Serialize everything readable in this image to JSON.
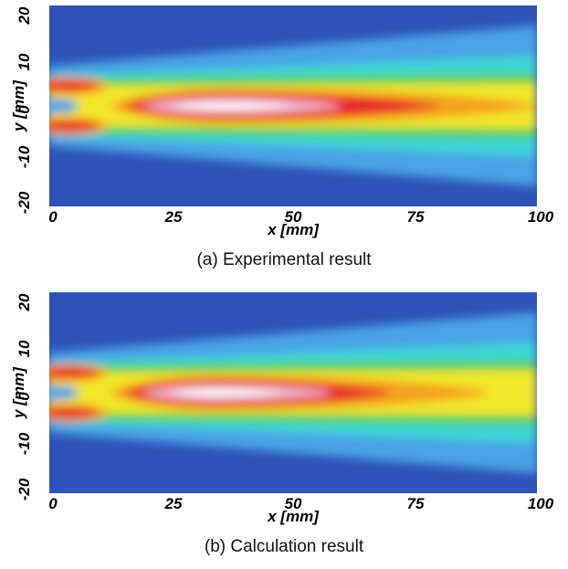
{
  "chart_data": [
    {
      "type": "heatmap",
      "caption": "(a) Experimental result",
      "xlabel": "x [mm]",
      "ylabel": "y [mm]",
      "xlim": [
        0,
        100
      ],
      "ylim": [
        -20,
        20
      ],
      "xticks": [
        "0",
        "25",
        "50",
        "75",
        "100"
      ],
      "yticks": [
        "20",
        "10",
        "0",
        "-10",
        "-20"
      ],
      "colormap": [
        "#2f53b8",
        "#4aa3e6",
        "#3fd6d6",
        "#57d05a",
        "#f3e72c",
        "#f4a11f",
        "#e8202a",
        "#f0c0d8",
        "#ffffff"
      ],
      "features": {
        "core_center_y": 0,
        "core_start_x": 15,
        "core_peak_x": 36,
        "core_end_x": 100,
        "side_jets_y": [
          4,
          -4
        ],
        "side_jets_end_x": 12
      }
    },
    {
      "type": "heatmap",
      "caption": "(b) Calculation result",
      "xlabel": "x [mm]",
      "ylabel": "y [mm]",
      "xlim": [
        0,
        100
      ],
      "ylim": [
        -20,
        20
      ],
      "xticks": [
        "0",
        "25",
        "50",
        "75",
        "100"
      ],
      "yticks": [
        "20",
        "10",
        "0",
        "-10",
        "-20"
      ],
      "colormap": [
        "#2f53b8",
        "#4aa3e6",
        "#3fd6d6",
        "#57d05a",
        "#f3e72c",
        "#f4a11f",
        "#e8202a",
        "#f0c0d8",
        "#ffffff"
      ],
      "features": {
        "core_center_y": 0,
        "core_start_x": 15,
        "core_peak_x": 34,
        "core_end_x": 90,
        "side_jets_y": [
          4,
          -4
        ],
        "side_jets_end_x": 12
      }
    }
  ]
}
